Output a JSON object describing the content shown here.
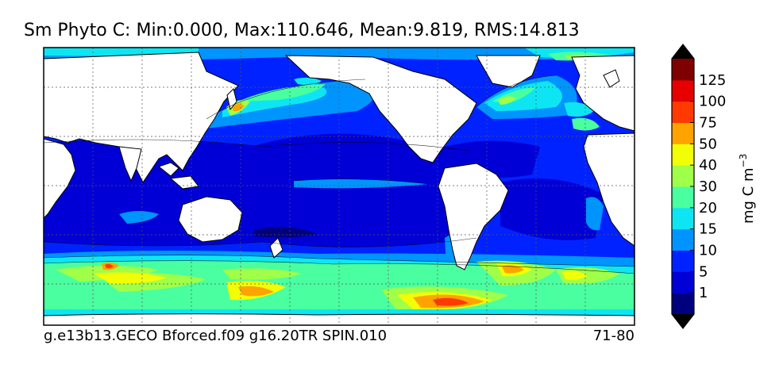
{
  "title": "Sm Phyto C: Min:0.000, Max:110.646, Mean:9.819, RMS:14.813",
  "footer": {
    "case_name": "g.e13b13.GECO Bforced.f09 g16.20TR SPIN.010",
    "years": "71-80"
  },
  "colorbar": {
    "unit_label": "mg C m",
    "unit_exponent": "−3",
    "ticks": [
      "1",
      "5",
      "10",
      "15",
      "20",
      "30",
      "40",
      "50",
      "75",
      "100",
      "125"
    ],
    "colors": [
      "#00007f",
      "#0000d6",
      "#0022ff",
      "#0094ff",
      "#0de6f2",
      "#49ff9f",
      "#9fff49",
      "#f2fe05",
      "#ffa300",
      "#ff3a00",
      "#e60000",
      "#7f0000"
    ],
    "extend": "both"
  },
  "map": {
    "projection": "Plate Carree, Pacific-centered",
    "land_color": "#ffffff",
    "gridlines": true
  }
}
